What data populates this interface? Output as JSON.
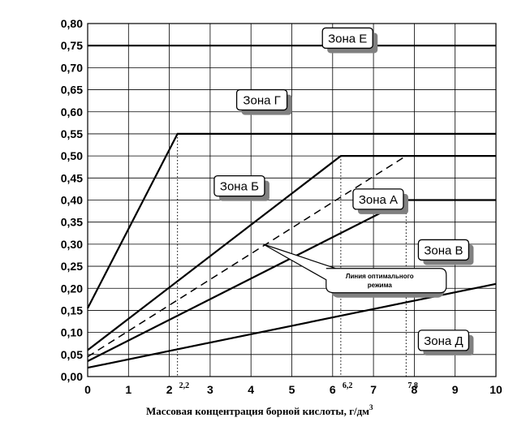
{
  "chart_data": {
    "type": "line",
    "xlabel": "Массовая концентрация борной кислоты, г/дм",
    "xlabel_sup": "3",
    "ylabel": "",
    "xlim": [
      0,
      10
    ],
    "ylim": [
      0,
      0.8
    ],
    "grid": true,
    "x_ticks": [
      "0",
      "1",
      "2",
      "3",
      "4",
      "5",
      "6",
      "7",
      "8",
      "9",
      "10"
    ],
    "y_ticks": [
      "0,00",
      "0,05",
      "0,10",
      "0,15",
      "0,20",
      "0,25",
      "0,30",
      "0,35",
      "0,40",
      "0,45",
      "0,50",
      "0,55",
      "0,60",
      "0,65",
      "0,70",
      "0,75",
      "0,80"
    ],
    "series": [
      {
        "style": "solid",
        "points": [
          [
            0,
            0.75
          ],
          [
            10,
            0.75
          ]
        ]
      },
      {
        "style": "solid",
        "points": [
          [
            0,
            0.155
          ],
          [
            2.2,
            0.55
          ],
          [
            10,
            0.55
          ]
        ]
      },
      {
        "style": "solid",
        "points": [
          [
            0,
            0.06
          ],
          [
            6.2,
            0.5
          ],
          [
            10,
            0.5
          ]
        ]
      },
      {
        "style": "dashed",
        "points": [
          [
            0,
            0.045
          ],
          [
            7.8,
            0.5
          ]
        ]
      },
      {
        "style": "solid",
        "points": [
          [
            0,
            0.035
          ],
          [
            7.8,
            0.4
          ],
          [
            10,
            0.4
          ]
        ]
      },
      {
        "style": "solid",
        "points": [
          [
            0,
            0.02
          ],
          [
            10,
            0.21
          ]
        ]
      }
    ],
    "reference_lines": [
      {
        "x": 2.2,
        "y": 0.55,
        "label": "2,2"
      },
      {
        "x": 6.2,
        "y": 0.5,
        "label": "6,2"
      },
      {
        "x": 7.8,
        "y": 0.4,
        "label": "7,8"
      }
    ],
    "zones": [
      {
        "label": "Зона Е",
        "x": 5.75,
        "y": 0.79
      },
      {
        "label": "Зона Г",
        "x": 3.65,
        "y": 0.65
      },
      {
        "label": "Зона Б",
        "x": 3.1,
        "y": 0.455
      },
      {
        "label": "Зона А",
        "x": 6.5,
        "y": 0.425
      },
      {
        "label": "Зона В",
        "x": 8.1,
        "y": 0.31
      },
      {
        "label": "Зона Д",
        "x": 8.1,
        "y": 0.105
      }
    ],
    "callout": {
      "lines": [
        "Линия оптимального",
        "режима"
      ],
      "x": 6.0,
      "y": 0.245,
      "pointer_to": [
        4.3,
        0.3
      ]
    }
  }
}
